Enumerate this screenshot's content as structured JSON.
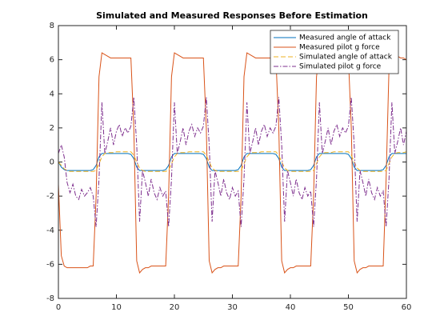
{
  "chart_data": {
    "type": "line",
    "title": "Simulated and Measured Responses Before Estimation",
    "x": [
      0,
      0.5,
      1,
      1.5,
      2,
      2.5,
      3,
      3.5,
      4,
      4.5,
      5,
      5.5,
      6,
      6.5,
      7,
      7.5,
      8,
      8.5,
      9,
      9.5,
      10,
      10.5,
      11,
      11.5,
      12,
      12.5,
      13,
      13.5,
      14,
      14.5,
      15,
      15.5,
      16,
      16.5,
      17,
      17.5,
      18,
      18.5,
      19,
      19.5,
      20,
      20.5,
      21,
      21.5,
      22,
      22.5,
      23,
      23.5,
      24,
      24.5,
      25,
      25.5,
      26,
      26.5,
      27,
      27.5,
      28,
      28.5,
      29,
      29.5,
      30,
      30.5,
      31,
      31.5,
      32,
      32.5,
      33,
      33.5,
      34,
      34.5,
      35,
      35.5,
      36,
      36.5,
      37,
      37.5,
      38,
      38.5,
      39,
      39.5,
      40,
      40.5,
      41,
      41.5,
      42,
      42.5,
      43,
      43.5,
      44,
      44.5,
      45,
      45.5,
      46,
      46.5,
      47,
      47.5,
      48,
      48.5,
      49,
      49.5,
      50,
      50.5,
      51,
      51.5,
      52,
      52.5,
      53,
      53.5,
      54,
      54.5,
      55,
      55.5,
      56,
      56.5,
      57,
      57.5,
      58,
      58.5,
      59,
      59.5,
      60
    ],
    "series": [
      {
        "name": "Measured angle of attack",
        "color": "#0072BD",
        "dash": "solid",
        "values": [
          0,
          -0.3,
          -0.45,
          -0.5,
          -0.5,
          -0.5,
          -0.5,
          -0.5,
          -0.5,
          -0.5,
          -0.5,
          -0.5,
          -0.45,
          -0.2,
          0.3,
          0.5,
          0.5,
          0.5,
          0.5,
          0.5,
          0.5,
          0.5,
          0.5,
          0.5,
          0.5,
          0.45,
          0.2,
          -0.3,
          -0.5,
          -0.5,
          -0.5,
          -0.5,
          -0.5,
          -0.5,
          -0.5,
          -0.5,
          -0.5,
          -0.45,
          -0.2,
          0.3,
          0.5,
          0.5,
          0.5,
          0.5,
          0.5,
          0.5,
          0.5,
          0.5,
          0.5,
          0.5,
          0.45,
          0.2,
          -0.3,
          -0.5,
          -0.5,
          -0.5,
          -0.5,
          -0.5,
          -0.5,
          -0.5,
          -0.5,
          -0.5,
          -0.45,
          -0.2,
          0.3,
          0.5,
          0.5,
          0.5,
          0.5,
          0.5,
          0.5,
          0.5,
          0.5,
          0.5,
          0.5,
          0.45,
          0.2,
          -0.3,
          -0.5,
          -0.5,
          -0.5,
          -0.5,
          -0.5,
          -0.5,
          -0.5,
          -0.5,
          -0.5,
          -0.45,
          -0.2,
          0.3,
          0.5,
          0.5,
          0.5,
          0.5,
          0.5,
          0.5,
          0.5,
          0.5,
          0.5,
          0.5,
          0.45,
          0.2,
          -0.3,
          -0.5,
          -0.5,
          -0.5,
          -0.5,
          -0.5,
          -0.5,
          -0.5,
          -0.5,
          -0.5,
          -0.45,
          -0.2,
          0.3,
          0.5,
          0.5,
          0.5,
          0.5,
          0.5,
          0.5
        ]
      },
      {
        "name": "Measured pilot g force",
        "color": "#D95319",
        "dash": "solid",
        "values": [
          -1.3,
          -5.5,
          -6.1,
          -6.2,
          -6.2,
          -6.2,
          -6.2,
          -6.2,
          -6.2,
          -6.2,
          -6.2,
          -6.1,
          -6.1,
          -2,
          5,
          6.4,
          6.3,
          6.2,
          6.1,
          6.1,
          6.1,
          6.1,
          6.1,
          6.1,
          6.1,
          6.1,
          2,
          -5.8,
          -6.5,
          -6.3,
          -6.2,
          -6.2,
          -6.1,
          -6.1,
          -6.1,
          -6.1,
          -6.1,
          -6.1,
          -2,
          5,
          6.4,
          6.3,
          6.2,
          6.1,
          6.1,
          6.1,
          6.1,
          6.1,
          6.1,
          6.1,
          6.1,
          2,
          -5.8,
          -6.5,
          -6.3,
          -6.2,
          -6.2,
          -6.1,
          -6.1,
          -6.1,
          -6.1,
          -6.1,
          -6.1,
          -2,
          5,
          6.4,
          6.3,
          6.2,
          6.1,
          6.1,
          6.1,
          6.1,
          6.1,
          6.1,
          6.1,
          6.1,
          2,
          -5.8,
          -6.5,
          -6.3,
          -6.2,
          -6.2,
          -6.1,
          -6.1,
          -6.1,
          -6.1,
          -6.1,
          -6.1,
          -2,
          5,
          6.4,
          6.3,
          6.2,
          6.1,
          6.1,
          6.1,
          6.1,
          6.1,
          6.1,
          6.1,
          6.1,
          2,
          -5.8,
          -6.5,
          -6.3,
          -6.2,
          -6.2,
          -6.1,
          -6.1,
          -6.1,
          -6.1,
          -6.1,
          -6.1,
          -1,
          5.5,
          6.4,
          6.3,
          6.2,
          6.1,
          6.1,
          6.0
        ]
      },
      {
        "name": "Simulated angle of attack",
        "color": "#EDB120",
        "dash": "dashed",
        "values": [
          0,
          -0.2,
          -0.4,
          -0.5,
          -0.55,
          -0.55,
          -0.55,
          -0.55,
          -0.55,
          -0.55,
          -0.55,
          -0.55,
          -0.55,
          -0.5,
          -0.1,
          0.3,
          0.5,
          0.55,
          0.55,
          0.55,
          0.6,
          0.6,
          0.6,
          0.6,
          0.6,
          0.6,
          0.4,
          0,
          -0.35,
          -0.5,
          -0.55,
          -0.55,
          -0.55,
          -0.55,
          -0.55,
          -0.55,
          -0.55,
          -0.55,
          -0.5,
          -0.1,
          0.3,
          0.5,
          0.55,
          0.55,
          0.55,
          0.6,
          0.6,
          0.6,
          0.6,
          0.6,
          0.6,
          0.4,
          0,
          -0.35,
          -0.5,
          -0.55,
          -0.55,
          -0.55,
          -0.55,
          -0.55,
          -0.55,
          -0.55,
          -0.55,
          -0.5,
          -0.1,
          0.3,
          0.5,
          0.55,
          0.55,
          0.55,
          0.6,
          0.6,
          0.6,
          0.6,
          0.6,
          0.6,
          0.4,
          0,
          -0.35,
          -0.5,
          -0.55,
          -0.55,
          -0.55,
          -0.55,
          -0.55,
          -0.55,
          -0.55,
          -0.55,
          -0.5,
          -0.1,
          0.3,
          0.5,
          0.55,
          0.55,
          0.55,
          0.6,
          0.6,
          0.6,
          0.6,
          0.6,
          0.6,
          0.4,
          0,
          -0.35,
          -0.5,
          -0.55,
          -0.55,
          -0.55,
          -0.55,
          -0.55,
          -0.55,
          -0.55,
          -0.55,
          -0.5,
          -0.1,
          0.3,
          0.5,
          0.55,
          0.55,
          0.55,
          0.6
        ]
      },
      {
        "name": "Simulated pilot g force",
        "color": "#7E2F8E",
        "dash": "dashdot",
        "values": [
          0.5,
          1,
          0.3,
          -1.2,
          -1.8,
          -1.3,
          -2,
          -2.2,
          -1.6,
          -2,
          -1.8,
          -1.5,
          -2,
          -3.8,
          -1,
          3.5,
          0.5,
          1.2,
          2,
          1,
          1.8,
          2.2,
          1.5,
          2,
          1.7,
          2.1,
          3.8,
          1,
          -3.5,
          -0.5,
          -1.2,
          -2,
          -1,
          -1.8,
          -2.2,
          -1.5,
          -2,
          -1.7,
          -3.8,
          -1,
          3.5,
          0.5,
          1.2,
          2,
          1,
          1.8,
          2.2,
          1.5,
          2,
          1.7,
          2.1,
          3.8,
          1,
          -3.5,
          -0.5,
          -1.2,
          -2,
          -1,
          -1.8,
          -2.2,
          -1.5,
          -2,
          -1.7,
          -3.8,
          -1,
          3.5,
          0.5,
          1.2,
          2,
          1,
          1.8,
          2.2,
          1.5,
          2,
          1.7,
          2.1,
          3.8,
          1,
          -3.5,
          -0.5,
          -1.2,
          -2,
          -1,
          -1.8,
          -2.2,
          -1.5,
          -2,
          -1.7,
          -3.8,
          -1,
          3.5,
          0.5,
          1.2,
          2,
          1,
          1.8,
          2.2,
          1.5,
          2,
          1.7,
          2.1,
          3.8,
          1,
          -3.5,
          -0.5,
          -1.2,
          -2,
          -1,
          -1.8,
          -2.2,
          -1.5,
          -2,
          -1.7,
          -3.8,
          -1,
          3.5,
          0.5,
          1.2,
          2,
          1,
          1.8
        ]
      }
    ],
    "xlim": [
      0,
      60
    ],
    "xticks": [
      0,
      10,
      20,
      30,
      40,
      50,
      60
    ],
    "ylim": [
      -8,
      8
    ],
    "yticks": [
      -8,
      -6,
      -4,
      -2,
      0,
      2,
      4,
      6,
      8
    ],
    "grid": false,
    "legend": "northeast"
  }
}
